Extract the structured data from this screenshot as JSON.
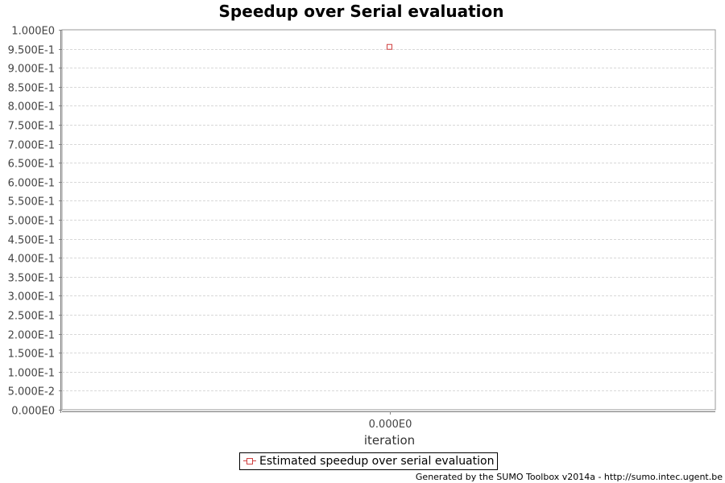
{
  "chart_data": {
    "type": "scatter",
    "title": "Speedup over Serial evaluation",
    "xlabel": "iteration",
    "ylabel": "",
    "ylim": [
      0,
      1.0
    ],
    "ytick_values": [
      0,
      0.05,
      0.1,
      0.15,
      0.2,
      0.25,
      0.3,
      0.35,
      0.4,
      0.45,
      0.5,
      0.55,
      0.6,
      0.65,
      0.7,
      0.75,
      0.8,
      0.85,
      0.9,
      0.95,
      1.0
    ],
    "ytick_labels": [
      "0.000E0",
      "5.000E-2",
      "1.000E-1",
      "1.500E-1",
      "2.000E-1",
      "2.500E-1",
      "3.000E-1",
      "3.500E-1",
      "4.000E-1",
      "4.500E-1",
      "5.000E-1",
      "5.500E-1",
      "6.000E-1",
      "6.500E-1",
      "7.000E-1",
      "7.500E-1",
      "8.000E-1",
      "8.500E-1",
      "9.000E-1",
      "9.500E-1",
      "1.000E0"
    ],
    "xtick_values": [
      0
    ],
    "xtick_labels": [
      "0.000E0"
    ],
    "grid": true,
    "legend_position": "bottom-center",
    "series": [
      {
        "name": "Estimated speedup over serial evaluation",
        "color": "#d04040",
        "marker": "square-open",
        "x": [
          0
        ],
        "y": [
          0.955
        ]
      }
    ]
  },
  "footer": "Generated by the SUMO Toolbox v2014a - http://sumo.intec.ugent.be"
}
